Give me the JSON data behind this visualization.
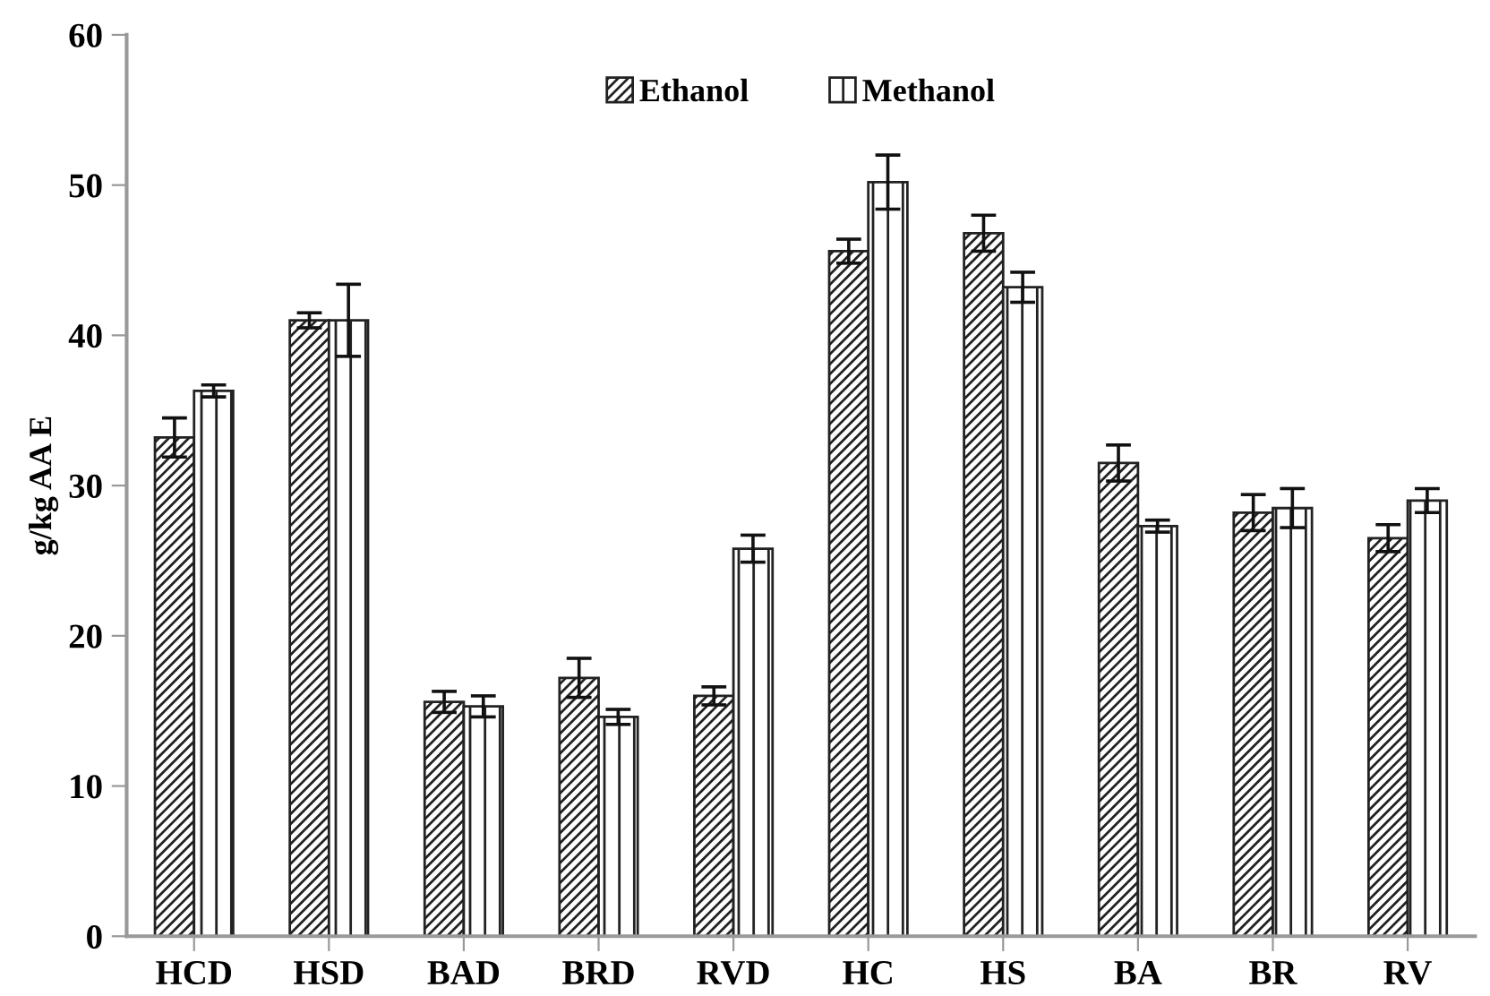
{
  "chart_data": {
    "type": "bar",
    "ylabel": "g/kg AA E",
    "categories": [
      "HCD",
      "HSD",
      "BAD",
      "BRD",
      "RVD",
      "HC",
      "HS",
      "BA",
      "BR",
      "RV"
    ],
    "series": [
      {
        "name": "Ethanol",
        "color": "#222222",
        "values": [
          33.2,
          41.0,
          15.6,
          17.2,
          16.0,
          45.6,
          46.8,
          31.5,
          28.2,
          26.5
        ],
        "errors": [
          1.3,
          0.5,
          0.7,
          1.3,
          0.6,
          0.8,
          1.2,
          1.2,
          1.2,
          0.9
        ]
      },
      {
        "name": "Methanol",
        "color": "#222222",
        "values": [
          36.3,
          41.0,
          15.3,
          14.6,
          25.8,
          50.2,
          43.2,
          27.3,
          28.5,
          29.0
        ],
        "errors": [
          0.4,
          2.4,
          0.7,
          0.5,
          0.9,
          1.8,
          1.0,
          0.4,
          1.3,
          0.8
        ]
      }
    ],
    "ylim": [
      0,
      60
    ],
    "yticks": [
      0,
      10,
      20,
      30,
      40,
      50,
      60
    ],
    "grid": false,
    "legend": "top"
  }
}
